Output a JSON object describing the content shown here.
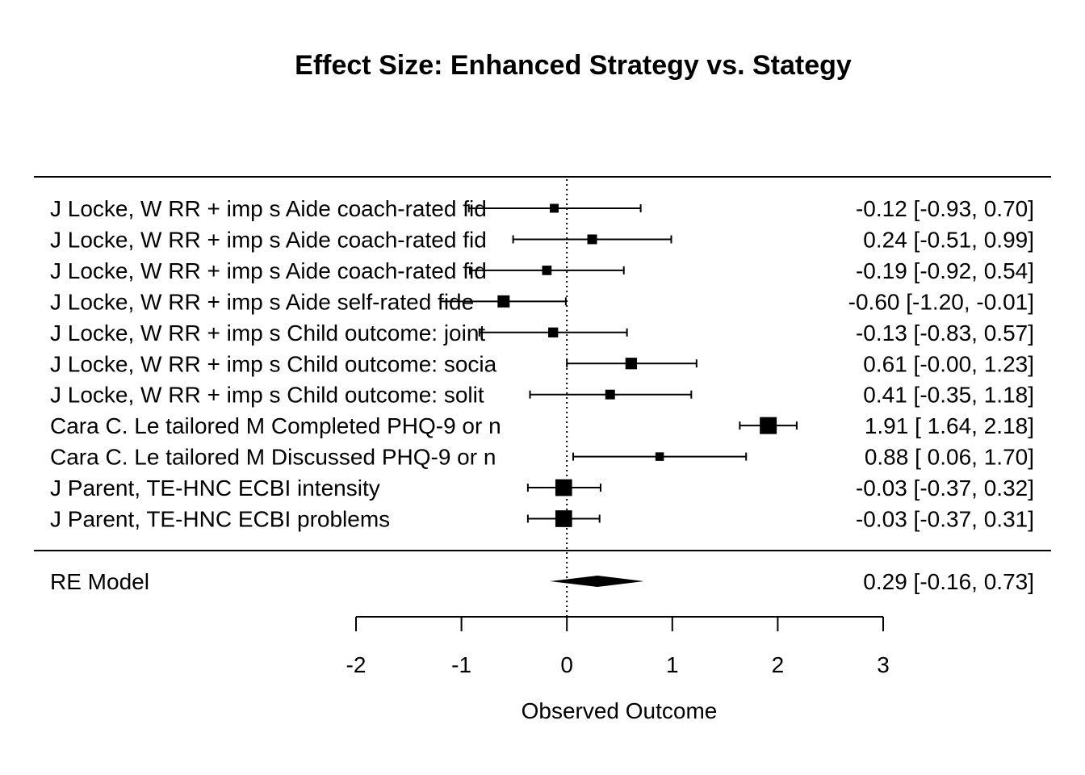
{
  "chart_data": {
    "type": "forest",
    "title": "Effect Size: Enhanced Strategy vs. Stategy",
    "xlabel": "Observed Outcome",
    "xlim": [
      -2,
      3
    ],
    "xticks": [
      "-2",
      "-1",
      "0",
      "1",
      "2",
      "3"
    ],
    "reference_line": 0,
    "studies": [
      {
        "label": "J Locke, W RR + imp s Aide coach-rated fid",
        "estimate": -0.12,
        "lower": -0.93,
        "upper": 0.7,
        "weight": 0.33,
        "ci_text": "-0.12 [-0.93,  0.70]"
      },
      {
        "label": "J Locke, W RR + imp s Aide coach-rated fid",
        "estimate": 0.24,
        "lower": -0.51,
        "upper": 0.99,
        "weight": 0.4,
        "ci_text": "0.24 [-0.51,  0.99]"
      },
      {
        "label": "J Locke, W RR + imp s Aide coach-rated fid",
        "estimate": -0.19,
        "lower": -0.92,
        "upper": 0.54,
        "weight": 0.38,
        "ci_text": "-0.19 [-0.92,  0.54]"
      },
      {
        "label": "J Locke, W RR + imp s Aide self-rated fide",
        "estimate": -0.6,
        "lower": -1.2,
        "upper": -0.01,
        "weight": 0.6,
        "ci_text": "-0.60 [-1.20, -0.01]"
      },
      {
        "label": "J Locke, W RR + imp s Child outcome: joint",
        "estimate": -0.13,
        "lower": -0.83,
        "upper": 0.57,
        "weight": 0.42,
        "ci_text": "-0.13 [-0.83,  0.57]"
      },
      {
        "label": "J Locke, W RR + imp s Child outcome: socia",
        "estimate": 0.61,
        "lower": -0.0,
        "upper": 1.23,
        "weight": 0.55,
        "ci_text": "0.61 [-0.00,  1.23]"
      },
      {
        "label": "J Locke, W RR + imp s Child outcome: solit",
        "estimate": 0.41,
        "lower": -0.35,
        "upper": 1.18,
        "weight": 0.4,
        "ci_text": "0.41 [-0.35,  1.18]"
      },
      {
        "label": "Cara C. Le tailored M Completed PHQ-9 or n",
        "estimate": 1.91,
        "lower": 1.64,
        "upper": 2.18,
        "weight": 1.0,
        "ci_text": "1.91 [ 1.64,  2.18]"
      },
      {
        "label": "Cara C. Le tailored M Discussed PHQ-9 or n",
        "estimate": 0.88,
        "lower": 0.06,
        "upper": 1.7,
        "weight": 0.3,
        "ci_text": "0.88 [ 0.06,  1.70]"
      },
      {
        "label": "J Parent,  TE-HNC ECBI intensity",
        "estimate": -0.03,
        "lower": -0.37,
        "upper": 0.32,
        "weight": 0.98,
        "ci_text": "-0.03 [-0.37,  0.32]"
      },
      {
        "label": "J Parent,  TE-HNC ECBI problems",
        "estimate": -0.03,
        "lower": -0.37,
        "upper": 0.31,
        "weight": 0.98,
        "ci_text": "-0.03 [-0.37,  0.31]"
      }
    ],
    "summary": {
      "label": "RE Model",
      "estimate": 0.29,
      "lower": -0.16,
      "upper": 0.73,
      "ci_text": "0.29 [-0.16,  0.73]"
    }
  }
}
